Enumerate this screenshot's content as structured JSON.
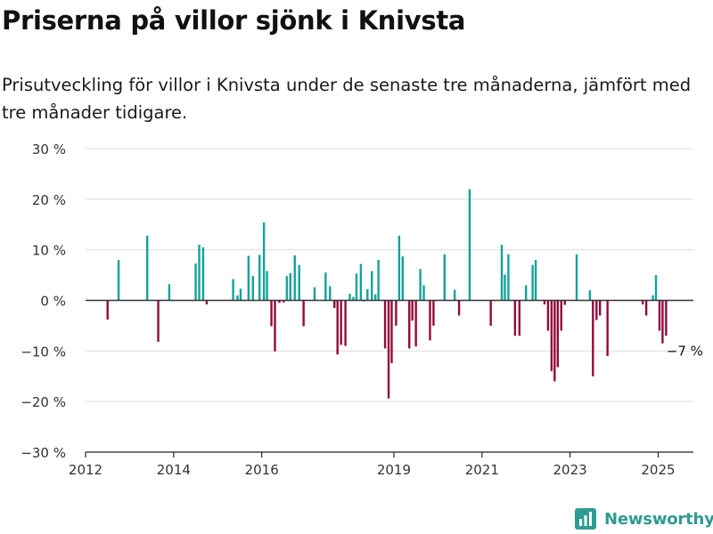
{
  "title": "Priserna på villor sjönk i Knivsta",
  "subtitle": "Prisutveckling för villor i Knivsta under de senaste tre månaderna, jämfört med tre månader tidigare.",
  "brand": "Newsworthy",
  "colors": {
    "positive": "#12a39a",
    "negative": "#930a3c",
    "grid": "#dddddd",
    "axis": "#222222",
    "brand": "#2f9b92"
  },
  "chart_data": {
    "type": "bar",
    "ylim": [
      -30,
      30
    ],
    "y_ticks": [
      30,
      20,
      10,
      0,
      -10,
      -20,
      -30
    ],
    "y_tick_labels": [
      "30 %",
      "20 %",
      "10 %",
      "0 %",
      "−10 %",
      "−20 %",
      "−30 %"
    ],
    "x_tick_labels": [
      {
        "year": 2012.0,
        "label": "2012"
      },
      {
        "year": 2014.0,
        "label": "2014"
      },
      {
        "year": 2016.0,
        "label": "2016"
      },
      {
        "year": 2019.0,
        "label": "2019"
      },
      {
        "year": 2021.0,
        "label": "2021"
      },
      {
        "year": 2023.0,
        "label": "2023"
      },
      {
        "year": 2025.0,
        "label": "2025"
      }
    ],
    "xlim": [
      2012.0,
      2025.8
    ],
    "annotation": {
      "text": "−7 %"
    },
    "bars": [
      {
        "x": 2012.5,
        "v": -3.8
      },
      {
        "x": 2012.75,
        "v": 8.0
      },
      {
        "x": 2013.4,
        "v": 12.8
      },
      {
        "x": 2013.65,
        "v": -8.2
      },
      {
        "x": 2013.9,
        "v": 3.2
      },
      {
        "x": 2014.5,
        "v": 7.3
      },
      {
        "x": 2014.58,
        "v": 11.0
      },
      {
        "x": 2014.67,
        "v": 10.5
      },
      {
        "x": 2014.75,
        "v": -0.8
      },
      {
        "x": 2015.35,
        "v": 4.2
      },
      {
        "x": 2015.45,
        "v": 1.0
      },
      {
        "x": 2015.52,
        "v": 2.3
      },
      {
        "x": 2015.7,
        "v": 8.8
      },
      {
        "x": 2015.8,
        "v": 4.8
      },
      {
        "x": 2015.95,
        "v": 9.0
      },
      {
        "x": 2016.05,
        "v": 15.4
      },
      {
        "x": 2016.12,
        "v": 5.8
      },
      {
        "x": 2016.22,
        "v": -5.1
      },
      {
        "x": 2016.3,
        "v": -10.1
      },
      {
        "x": 2016.4,
        "v": -0.5
      },
      {
        "x": 2016.5,
        "v": -0.4
      },
      {
        "x": 2016.57,
        "v": 4.8
      },
      {
        "x": 2016.65,
        "v": 5.4
      },
      {
        "x": 2016.75,
        "v": 8.9
      },
      {
        "x": 2016.85,
        "v": 7.0
      },
      {
        "x": 2016.95,
        "v": -5.1
      },
      {
        "x": 2017.2,
        "v": 2.6
      },
      {
        "x": 2017.45,
        "v": 5.5
      },
      {
        "x": 2017.55,
        "v": 2.8
      },
      {
        "x": 2017.65,
        "v": -1.5
      },
      {
        "x": 2017.72,
        "v": -10.7
      },
      {
        "x": 2017.8,
        "v": -8.8
      },
      {
        "x": 2017.9,
        "v": -9.0
      },
      {
        "x": 2018.0,
        "v": 1.3
      },
      {
        "x": 2018.08,
        "v": 0.7
      },
      {
        "x": 2018.15,
        "v": 5.3
      },
      {
        "x": 2018.25,
        "v": 7.2
      },
      {
        "x": 2018.32,
        "v": -0.2
      },
      {
        "x": 2018.4,
        "v": 2.2
      },
      {
        "x": 2018.5,
        "v": 5.8
      },
      {
        "x": 2018.58,
        "v": 1.2
      },
      {
        "x": 2018.65,
        "v": 8.0
      },
      {
        "x": 2018.8,
        "v": -9.5
      },
      {
        "x": 2018.88,
        "v": -19.4
      },
      {
        "x": 2018.95,
        "v": -12.4
      },
      {
        "x": 2019.05,
        "v": -5.0
      },
      {
        "x": 2019.12,
        "v": 12.8
      },
      {
        "x": 2019.2,
        "v": 8.7
      },
      {
        "x": 2019.35,
        "v": -9.5
      },
      {
        "x": 2019.42,
        "v": -4.0
      },
      {
        "x": 2019.5,
        "v": -9.1
      },
      {
        "x": 2019.6,
        "v": 6.2
      },
      {
        "x": 2019.68,
        "v": 3.0
      },
      {
        "x": 2019.82,
        "v": -7.9
      },
      {
        "x": 2019.9,
        "v": -5.0
      },
      {
        "x": 2020.15,
        "v": 9.1
      },
      {
        "x": 2020.38,
        "v": 2.1
      },
      {
        "x": 2020.48,
        "v": -3.0
      },
      {
        "x": 2020.72,
        "v": 22.0
      },
      {
        "x": 2021.2,
        "v": -5.0
      },
      {
        "x": 2021.45,
        "v": 11.0
      },
      {
        "x": 2021.52,
        "v": 5.1
      },
      {
        "x": 2021.6,
        "v": 9.1
      },
      {
        "x": 2021.75,
        "v": -7.0
      },
      {
        "x": 2021.85,
        "v": -7.0
      },
      {
        "x": 2022.0,
        "v": 3.0
      },
      {
        "x": 2022.15,
        "v": 7.0
      },
      {
        "x": 2022.22,
        "v": 8.0
      },
      {
        "x": 2022.42,
        "v": -0.8
      },
      {
        "x": 2022.5,
        "v": -6.0
      },
      {
        "x": 2022.58,
        "v": -14.0
      },
      {
        "x": 2022.65,
        "v": -16.0
      },
      {
        "x": 2022.72,
        "v": -13.2
      },
      {
        "x": 2022.8,
        "v": -6.0
      },
      {
        "x": 2022.88,
        "v": -0.9
      },
      {
        "x": 2023.15,
        "v": 9.1
      },
      {
        "x": 2023.45,
        "v": 2.0
      },
      {
        "x": 2023.52,
        "v": -15.0
      },
      {
        "x": 2023.6,
        "v": -3.9
      },
      {
        "x": 2023.68,
        "v": -3.0
      },
      {
        "x": 2023.85,
        "v": -11.0
      },
      {
        "x": 2024.65,
        "v": -0.8
      },
      {
        "x": 2024.73,
        "v": -3.0
      },
      {
        "x": 2024.88,
        "v": 1.0
      },
      {
        "x": 2024.95,
        "v": 5.0
      },
      {
        "x": 2025.03,
        "v": -6.0
      },
      {
        "x": 2025.1,
        "v": -8.5
      },
      {
        "x": 2025.18,
        "v": -7.0
      }
    ]
  }
}
